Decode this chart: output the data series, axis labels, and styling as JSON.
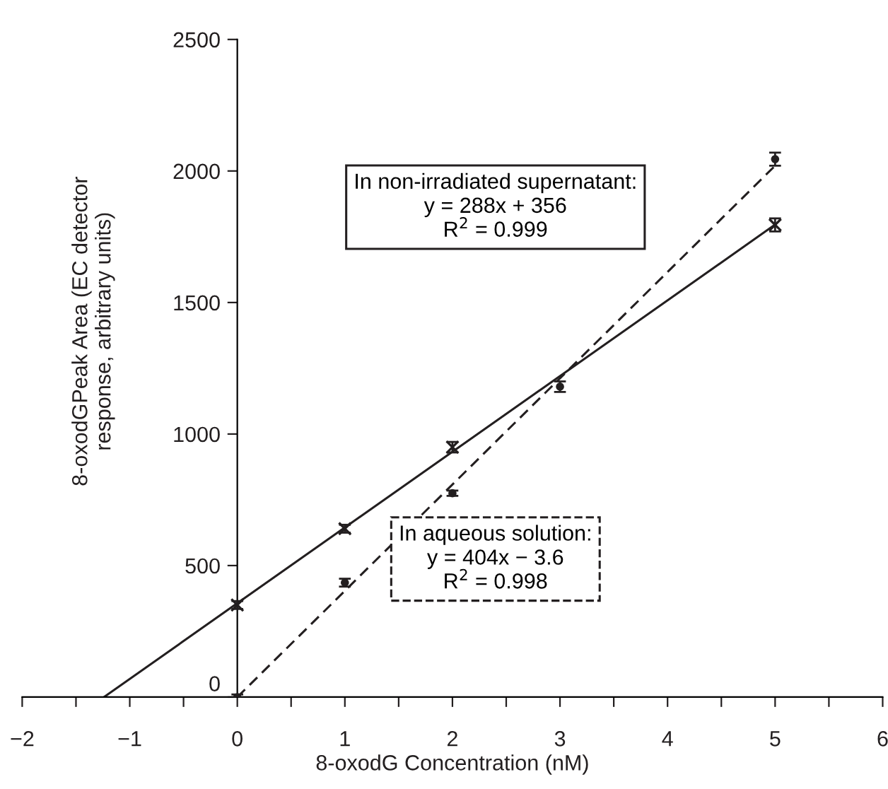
{
  "chart_data": {
    "type": "scatter",
    "xlabel": "8-oxodG Concentration (nM)",
    "ylabel": "8-oxodGPeak Area (EC detector\nresponse, arbitrary units)",
    "xlim": [
      -2,
      6
    ],
    "ylim": [
      0,
      2500
    ],
    "xticks": [
      -2,
      {
        "value": -1.5,
        "label": null
      },
      -1,
      {
        "value": -0.5,
        "label": null
      },
      0,
      {
        "value": 0.5,
        "label": null
      },
      1,
      {
        "value": 1.5,
        "label": null
      },
      2,
      {
        "value": 2.5,
        "label": null
      },
      3,
      {
        "value": 3.5,
        "label": null
      },
      4,
      {
        "value": 4.5,
        "label": null
      },
      5,
      {
        "value": 5.5,
        "label": null
      },
      6
    ],
    "yticks": [
      0,
      500,
      1000,
      1500,
      2000,
      2500
    ],
    "grid": false,
    "legend": false,
    "series": [
      {
        "type": "scatter",
        "color": "#231f20",
        "marker": "cross",
        "x": [
          0,
          1,
          2,
          5
        ],
        "values": [
          350,
          640,
          950,
          1795
        ],
        "errors": [
          15,
          15,
          20,
          25
        ]
      },
      {
        "type": "scatter",
        "color": "#231f20",
        "marker": "circle",
        "x": [
          0,
          1,
          2,
          3,
          5
        ],
        "values": [
          0,
          435,
          775,
          1180,
          2045
        ],
        "errors": [
          10,
          15,
          10,
          20,
          25
        ]
      },
      {
        "type": "line",
        "color": "#231f20",
        "line_style": "solid",
        "marker": "none",
        "x": [
          -1.24,
          5
        ],
        "values": [
          0,
          1796
        ]
      },
      {
        "type": "line",
        "color": "#231f20",
        "line_style": "dashed",
        "marker": "none",
        "x": [
          0,
          5
        ],
        "values": [
          0,
          2020
        ]
      }
    ],
    "annotations": [
      "In non-irradiated supernatant:\ny = 288x + 356\nR$^{2}$ = 0.999",
      "In aqueous solution:\ny = 404x − 3.6\nR$^{2}$ = 0.998"
    ]
  }
}
